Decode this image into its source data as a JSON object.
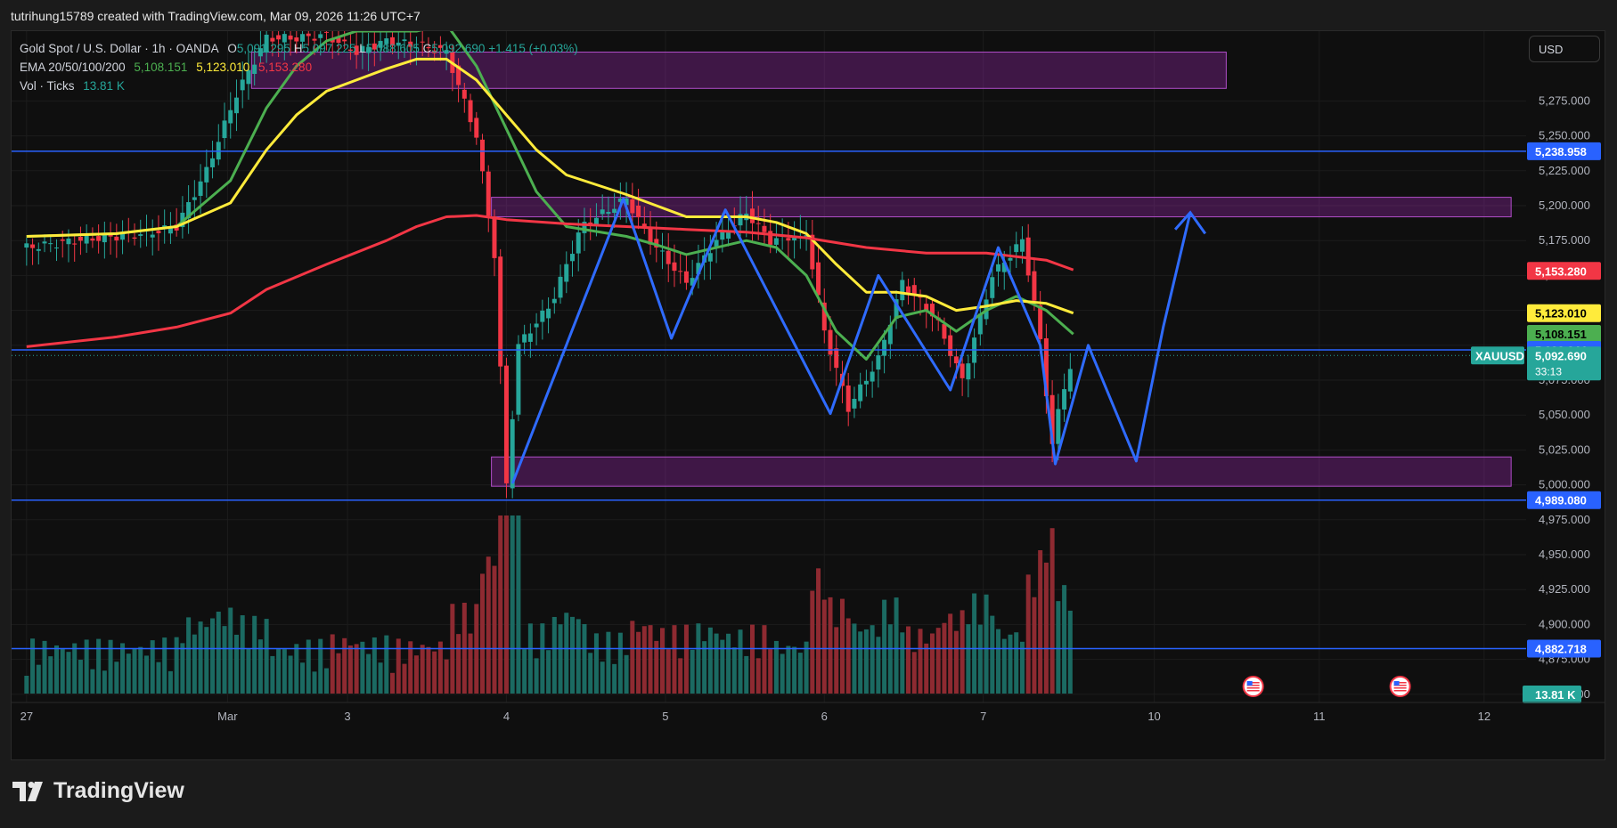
{
  "attribution": "tutrihung15789 created with TradingView.com, Mar 09, 2026 11:26 UTC+7",
  "legend": {
    "symbol": "Gold Spot / U.S. Dollar · 1h · OANDA",
    "open_label": "O",
    "open": "5,091.295",
    "high_label": "H",
    "high": "5,097.225",
    "low_label": "L",
    "low": "5,088.605",
    "close_label": "C",
    "close": "5,092.690",
    "change": "+1.415 (+0.03%)",
    "ema_label": "EMA 20/50/100/200",
    "ema20": "5,108.151",
    "ema50": "5,123.010",
    "ema100": "5,153.280",
    "vol_label": "Vol · Ticks",
    "vol": "13.81 K"
  },
  "currency": "USD",
  "logo": {
    "text": "TradingView",
    "icon": "tradingview-logo-icon"
  },
  "colors": {
    "up": "#26a69a",
    "down": "#f23645",
    "ema20": "#4caf50",
    "ema50": "#ffeb3b",
    "ema100": "#f23645",
    "hline": "#2962ff",
    "zone": "#9c27b0",
    "projection": "#2f6bff"
  },
  "chart_data": {
    "type": "candlestick",
    "symbol": "XAUUSD",
    "interval": "1h",
    "y_axis": {
      "range": [
        4825,
        5325
      ],
      "ticks": [
        4850,
        4875,
        4900,
        4925,
        4950,
        4975,
        5000,
        5025,
        5050,
        5075,
        5100,
        5125,
        5150,
        5175,
        5200,
        5225,
        5250,
        5275
      ],
      "tick_labels": [
        "4,850.000",
        "4,875.000",
        "4,900.000",
        "4,925.000",
        "4,950.000",
        "4,975.000",
        "5,000.000",
        "5,025.000",
        "5,050.000",
        "5,075.000",
        "5,100.000",
        "5,125.000",
        "5,150.000",
        "5,175.000",
        "5,200.000",
        "5,225.000",
        "5,250.000",
        "5,275.000"
      ]
    },
    "x_axis": {
      "labels": [
        "27",
        "Mar",
        "3",
        "4",
        "5",
        "6",
        "7",
        "10",
        "11",
        "12"
      ],
      "positions": [
        0.0,
        6.7,
        10.7,
        16.0,
        21.3,
        26.6,
        31.9,
        37.6,
        43.1,
        48.6
      ]
    },
    "x_range": [
      -0.5,
      50
    ],
    "last_bar_x": 34.9,
    "price_key": [
      [
        0,
        5170
      ],
      [
        2,
        5176
      ],
      [
        4,
        5180
      ],
      [
        5,
        5185
      ],
      [
        6,
        5225
      ],
      [
        7,
        5280
      ],
      [
        8,
        5320
      ],
      [
        9,
        5320
      ],
      [
        10,
        5322
      ],
      [
        11,
        5310
      ],
      [
        12,
        5318
      ],
      [
        13,
        5315
      ],
      [
        14,
        5310
      ],
      [
        15,
        5250
      ],
      [
        15.6,
        5165
      ],
      [
        16.0,
        5000
      ],
      [
        16.4,
        5100
      ],
      [
        17.5,
        5130
      ],
      [
        18.5,
        5185
      ],
      [
        20.0,
        5205
      ],
      [
        20.8,
        5175
      ],
      [
        22.0,
        5145
      ],
      [
        23.0,
        5175
      ],
      [
        24.0,
        5195
      ],
      [
        24.8,
        5175
      ],
      [
        26.0,
        5180
      ],
      [
        26.6,
        5110
      ],
      [
        27.4,
        5055
      ],
      [
        28.4,
        5090
      ],
      [
        29.2,
        5145
      ],
      [
        30.3,
        5120
      ],
      [
        31.2,
        5075
      ],
      [
        32.2,
        5150
      ],
      [
        33.2,
        5175
      ],
      [
        33.7,
        5120
      ],
      [
        34.2,
        5030
      ],
      [
        34.5,
        5062
      ],
      [
        34.9,
        5093
      ]
    ],
    "ema_series": [
      {
        "name": "EMA 20",
        "color": "#4caf50",
        "points": [
          [
            0,
            5178
          ],
          [
            3,
            5180
          ],
          [
            5,
            5185
          ],
          [
            6.8,
            5218
          ],
          [
            8,
            5270
          ],
          [
            9,
            5300
          ],
          [
            10,
            5318
          ],
          [
            11,
            5325
          ],
          [
            12,
            5325
          ],
          [
            13,
            5325
          ],
          [
            14,
            5330
          ],
          [
            15,
            5300
          ],
          [
            16,
            5255
          ],
          [
            17,
            5210
          ],
          [
            18,
            5185
          ],
          [
            20,
            5178
          ],
          [
            21,
            5172
          ],
          [
            22,
            5165
          ],
          [
            24,
            5175
          ],
          [
            25,
            5170
          ],
          [
            26,
            5150
          ],
          [
            27,
            5110
          ],
          [
            28,
            5090
          ],
          [
            29,
            5120
          ],
          [
            30,
            5125
          ],
          [
            31,
            5110
          ],
          [
            32,
            5125
          ],
          [
            33,
            5135
          ],
          [
            34,
            5125
          ],
          [
            34.9,
            5108
          ]
        ]
      },
      {
        "name": "EMA 50",
        "color": "#ffeb3b",
        "points": [
          [
            0,
            5178
          ],
          [
            3,
            5180
          ],
          [
            5,
            5185
          ],
          [
            6.8,
            5202
          ],
          [
            8,
            5240
          ],
          [
            9,
            5265
          ],
          [
            10,
            5282
          ],
          [
            11,
            5290
          ],
          [
            12,
            5298
          ],
          [
            13,
            5305
          ],
          [
            14,
            5305
          ],
          [
            15,
            5290
          ],
          [
            16,
            5265
          ],
          [
            17,
            5240
          ],
          [
            18,
            5222
          ],
          [
            20,
            5208
          ],
          [
            21,
            5200
          ],
          [
            22,
            5192
          ],
          [
            24,
            5192
          ],
          [
            25,
            5188
          ],
          [
            26,
            5180
          ],
          [
            27,
            5158
          ],
          [
            28,
            5138
          ],
          [
            29,
            5138
          ],
          [
            30,
            5135
          ],
          [
            31,
            5125
          ],
          [
            32,
            5128
          ],
          [
            33,
            5132
          ],
          [
            34,
            5130
          ],
          [
            34.9,
            5123
          ]
        ]
      },
      {
        "name": "EMA 100",
        "color": "#f23645",
        "points": [
          [
            0,
            5099
          ],
          [
            3,
            5106
          ],
          [
            5,
            5113
          ],
          [
            6.8,
            5123
          ],
          [
            8,
            5140
          ],
          [
            10,
            5158
          ],
          [
            12,
            5175
          ],
          [
            13,
            5185
          ],
          [
            14,
            5192
          ],
          [
            15,
            5193
          ],
          [
            16,
            5190
          ],
          [
            18,
            5187
          ],
          [
            20,
            5185
          ],
          [
            22,
            5183
          ],
          [
            24,
            5181
          ],
          [
            26,
            5177
          ],
          [
            28,
            5170
          ],
          [
            30,
            5166
          ],
          [
            32,
            5166
          ],
          [
            34,
            5161
          ],
          [
            34.9,
            5154
          ]
        ]
      }
    ],
    "horizontal_lines": [
      {
        "price": 5238.958,
        "label": "5,238.958"
      },
      {
        "price": 5096.644,
        "label": "5,096.644"
      },
      {
        "price": 4989.08,
        "label": "4,989.080"
      },
      {
        "price": 4882.718,
        "label": "4,882.718"
      }
    ],
    "zones": [
      {
        "x": [
          7.5,
          40
        ],
        "price": [
          5284,
          5310
        ]
      },
      {
        "x": [
          15.5,
          49.5
        ],
        "price": [
          5192,
          5206
        ]
      },
      {
        "x": [
          15.5,
          49.5
        ],
        "price": [
          4999,
          5020
        ]
      }
    ],
    "pattern_path": [
      [
        16.2,
        5001
      ],
      [
        19.9,
        5205
      ],
      [
        21.5,
        5105
      ],
      [
        23.3,
        5197
      ],
      [
        26.8,
        5051
      ],
      [
        28.4,
        5150
      ],
      [
        30.8,
        5068
      ],
      [
        32.4,
        5170
      ],
      [
        33.8,
        5100
      ],
      [
        34.3,
        5015
      ],
      [
        35.4,
        5100
      ],
      [
        37.0,
        5017
      ],
      [
        37.9,
        5113
      ],
      [
        38.8,
        5195
      ]
    ],
    "arrowhead": [
      [
        38.3,
        5183
      ],
      [
        38.8,
        5195
      ],
      [
        39.3,
        5180
      ]
    ],
    "price_labels": [
      {
        "price": 5238.958,
        "text": "5,238.958",
        "color": "#2962ff",
        "text_color": "#ffffff"
      },
      {
        "price": 5153.28,
        "text": "5,153.280",
        "color": "#f23645",
        "text_color": "#ffffff"
      },
      {
        "price": 5123.01,
        "text": "5,123.010",
        "color": "#ffeb3b",
        "text_color": "#000000"
      },
      {
        "price": 5108.151,
        "text": "5,108.151",
        "color": "#4caf50",
        "text_color": "#000000"
      },
      {
        "price": 5096.644,
        "text": "5,096.644",
        "color": "#2962ff",
        "text_color": "#ffffff"
      },
      {
        "price": 4989.08,
        "text": "4,989.080",
        "color": "#2962ff",
        "text_color": "#ffffff"
      },
      {
        "price": 4882.718,
        "text": "4,882.718",
        "color": "#2962ff",
        "text_color": "#ffffff"
      }
    ],
    "current_price": {
      "price": 5092.69,
      "text": "5,092.690",
      "countdown": "33:13",
      "symbol_tag": "XAUUSD",
      "color": "#26a69a"
    },
    "volume": {
      "last": "13.81 K",
      "color": "#26a69a"
    },
    "event_markers": [
      {
        "x": 40.9
      },
      {
        "x": 45.8
      }
    ]
  }
}
